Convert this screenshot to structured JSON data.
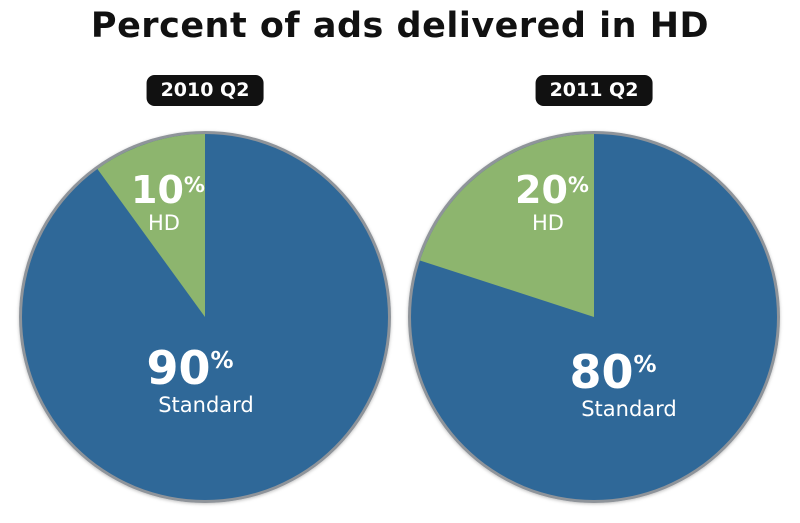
{
  "title": "Percent of ads delivered in HD",
  "chart_data": [
    {
      "type": "pie",
      "title": "2010 Q2",
      "slices": [
        {
          "label": "HD",
          "value": 10,
          "color": "#8db56e"
        },
        {
          "label": "Standard",
          "value": 90,
          "color": "#2f6898"
        }
      ]
    },
    {
      "type": "pie",
      "title": "2011 Q2",
      "slices": [
        {
          "label": "HD",
          "value": 20,
          "color": "#8db56e"
        },
        {
          "label": "Standard",
          "value": 80,
          "color": "#2f6898"
        }
      ]
    }
  ],
  "colors": {
    "hd": "#8db56e",
    "standard": "#2f6898",
    "rim": "#8f949a",
    "badge": "#111111"
  }
}
